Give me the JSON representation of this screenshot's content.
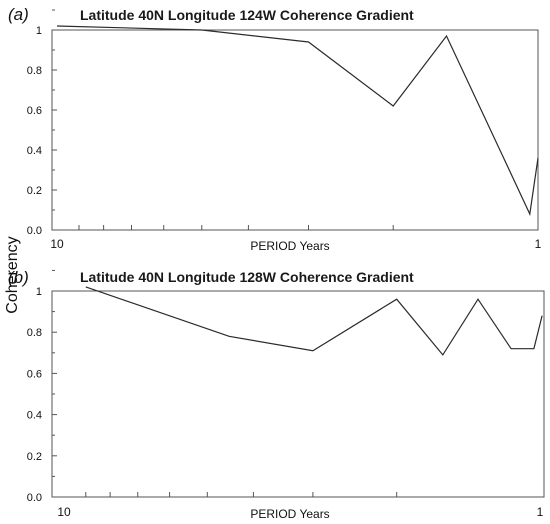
{
  "figure": {
    "ylabel": "Coherency"
  },
  "chart_data": [
    {
      "type": "line",
      "panel_label": "(a)",
      "title": "Latitude 40N Longitude 124W Coherence Gradient",
      "xlabel": "PERIOD Years",
      "ylabel": "Coherency",
      "x_scale": "log",
      "x_reversed": true,
      "xlim": [
        10,
        1
      ],
      "ylim": [
        0,
        1
      ],
      "yticks": [
        "0.0",
        "0.2",
        "0.4",
        "0.6",
        "0.8",
        "1"
      ],
      "xticks": [
        "10",
        "1"
      ],
      "x": [
        10,
        5,
        3,
        2,
        1.55,
        1.2,
        1.04,
        1
      ],
      "y": [
        1.02,
        1.0,
        0.94,
        0.62,
        0.97,
        0.4,
        0.08,
        0.36
      ],
      "color": "#2b2b2b"
    },
    {
      "type": "line",
      "panel_label": "(b)",
      "title": "Latitude 40N Longitude 128W Coherence Gradient",
      "xlabel": "PERIOD Years",
      "ylabel": "Coherency",
      "x_scale": "log",
      "x_reversed": true,
      "xlim": [
        10,
        1
      ],
      "ylim": [
        0,
        1
      ],
      "yticks": [
        "0.0",
        "0.2",
        "0.4",
        "0.6",
        "0.8",
        "1"
      ],
      "xticks": [
        "10",
        "1"
      ],
      "x": [
        9.0,
        4.5,
        3.0,
        2.0,
        1.6,
        1.35,
        1.15,
        1.03,
        0.99
      ],
      "y": [
        1.02,
        0.78,
        0.71,
        0.96,
        0.69,
        0.96,
        0.72,
        0.72,
        0.88
      ],
      "color": "#2b2b2b"
    }
  ]
}
